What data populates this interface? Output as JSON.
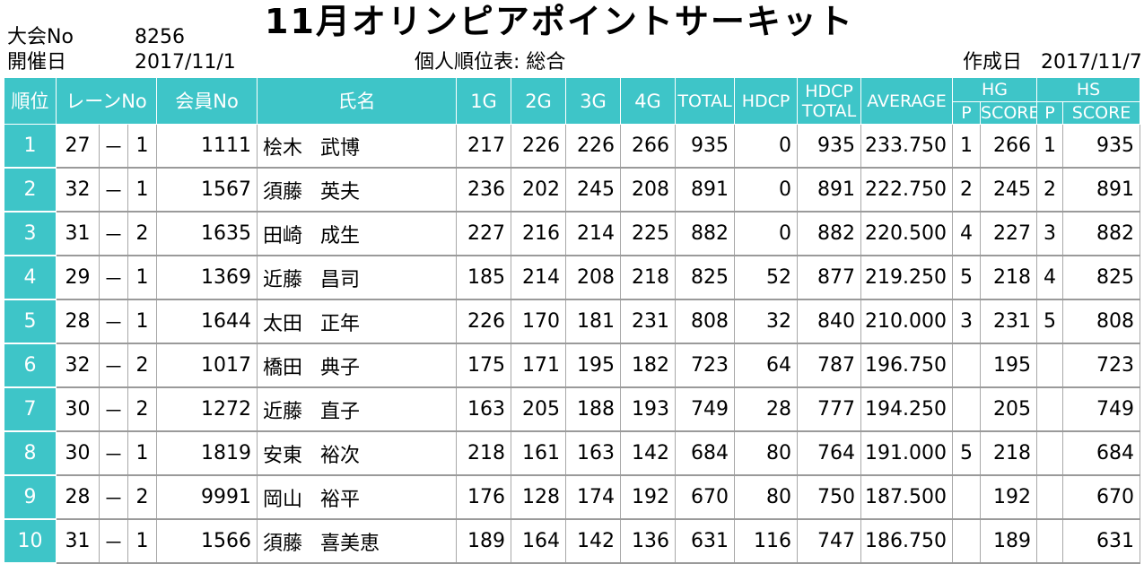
{
  "header": {
    "event_no_label": "大会No",
    "event_no": "8256",
    "date_label": "開催日",
    "date": "2017/11/1",
    "title": "11月オリンピアポイントサーキット",
    "subtitle": "個人順位表: 総合",
    "created_label": "作成日",
    "created_date": "2017/11/7"
  },
  "columns": {
    "rank": "順位",
    "lane": "レーンNo",
    "member": "会員No",
    "name": "氏名",
    "g1": "1G",
    "g2": "2G",
    "g3": "3G",
    "g4": "4G",
    "total": "TOTAL",
    "hdcp": "HDCP",
    "hdcp_total_1": "HDCP",
    "hdcp_total_2": "TOTAL",
    "average": "AVERAGE",
    "hg": "HG",
    "hs": "HS",
    "p": "P",
    "score": "SCORE"
  },
  "rows": [
    {
      "rank": "1",
      "lane": "27",
      "lane_sep": "－",
      "lane_pos": "1",
      "member": "1111",
      "surname": "桧木",
      "given": "武博",
      "g1": "217",
      "g2": "226",
      "g3": "226",
      "g4": "266",
      "total": "935",
      "hdcp": "0",
      "hdcp_total": "935",
      "average": "233.750",
      "hg_p": "1",
      "hg_score": "266",
      "hs_p": "1",
      "hs_score": "935"
    },
    {
      "rank": "2",
      "lane": "32",
      "lane_sep": "－",
      "lane_pos": "1",
      "member": "1567",
      "surname": "須藤",
      "given": "英夫",
      "g1": "236",
      "g2": "202",
      "g3": "245",
      "g4": "208",
      "total": "891",
      "hdcp": "0",
      "hdcp_total": "891",
      "average": "222.750",
      "hg_p": "2",
      "hg_score": "245",
      "hs_p": "2",
      "hs_score": "891"
    },
    {
      "rank": "3",
      "lane": "31",
      "lane_sep": "－",
      "lane_pos": "2",
      "member": "1635",
      "surname": "田崎",
      "given": "成生",
      "g1": "227",
      "g2": "216",
      "g3": "214",
      "g4": "225",
      "total": "882",
      "hdcp": "0",
      "hdcp_total": "882",
      "average": "220.500",
      "hg_p": "4",
      "hg_score": "227",
      "hs_p": "3",
      "hs_score": "882"
    },
    {
      "rank": "4",
      "lane": "29",
      "lane_sep": "－",
      "lane_pos": "1",
      "member": "1369",
      "surname": "近藤",
      "given": "昌司",
      "g1": "185",
      "g2": "214",
      "g3": "208",
      "g4": "218",
      "total": "825",
      "hdcp": "52",
      "hdcp_total": "877",
      "average": "219.250",
      "hg_p": "5",
      "hg_score": "218",
      "hs_p": "4",
      "hs_score": "825"
    },
    {
      "rank": "5",
      "lane": "28",
      "lane_sep": "－",
      "lane_pos": "1",
      "member": "1644",
      "surname": "太田",
      "given": "正年",
      "g1": "226",
      "g2": "170",
      "g3": "181",
      "g4": "231",
      "total": "808",
      "hdcp": "32",
      "hdcp_total": "840",
      "average": "210.000",
      "hg_p": "3",
      "hg_score": "231",
      "hs_p": "5",
      "hs_score": "808"
    },
    {
      "rank": "6",
      "lane": "32",
      "lane_sep": "－",
      "lane_pos": "2",
      "member": "1017",
      "surname": "橋田",
      "given": "典子",
      "g1": "175",
      "g2": "171",
      "g3": "195",
      "g4": "182",
      "total": "723",
      "hdcp": "64",
      "hdcp_total": "787",
      "average": "196.750",
      "hg_p": "",
      "hg_score": "195",
      "hs_p": "",
      "hs_score": "723"
    },
    {
      "rank": "7",
      "lane": "30",
      "lane_sep": "－",
      "lane_pos": "2",
      "member": "1272",
      "surname": "近藤",
      "given": "直子",
      "g1": "163",
      "g2": "205",
      "g3": "188",
      "g4": "193",
      "total": "749",
      "hdcp": "28",
      "hdcp_total": "777",
      "average": "194.250",
      "hg_p": "",
      "hg_score": "205",
      "hs_p": "",
      "hs_score": "749"
    },
    {
      "rank": "8",
      "lane": "30",
      "lane_sep": "－",
      "lane_pos": "1",
      "member": "1819",
      "surname": "安東",
      "given": "裕次",
      "g1": "218",
      "g2": "161",
      "g3": "163",
      "g4": "142",
      "total": "684",
      "hdcp": "80",
      "hdcp_total": "764",
      "average": "191.000",
      "hg_p": "5",
      "hg_score": "218",
      "hs_p": "",
      "hs_score": "684"
    },
    {
      "rank": "9",
      "lane": "28",
      "lane_sep": "－",
      "lane_pos": "2",
      "member": "9991",
      "surname": "岡山",
      "given": "裕平",
      "g1": "176",
      "g2": "128",
      "g3": "174",
      "g4": "192",
      "total": "670",
      "hdcp": "80",
      "hdcp_total": "750",
      "average": "187.500",
      "hg_p": "",
      "hg_score": "192",
      "hs_p": "",
      "hs_score": "670"
    },
    {
      "rank": "10",
      "lane": "31",
      "lane_sep": "－",
      "lane_pos": "1",
      "member": "1566",
      "surname": "須藤",
      "given": "喜美恵",
      "g1": "189",
      "g2": "164",
      "g3": "142",
      "g4": "136",
      "total": "631",
      "hdcp": "116",
      "hdcp_total": "747",
      "average": "186.750",
      "hg_p": "",
      "hg_score": "189",
      "hs_p": "",
      "hs_score": "631"
    }
  ]
}
